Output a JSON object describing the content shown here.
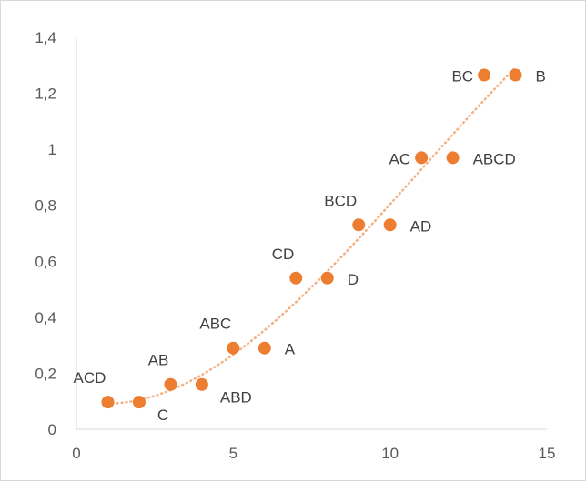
{
  "chart_data": {
    "type": "scatter",
    "title": "",
    "xlabel": "",
    "ylabel": "",
    "xlim": [
      0,
      15
    ],
    "ylim": [
      0,
      1.4
    ],
    "x_ticks": [
      "0",
      "5",
      "10",
      "15"
    ],
    "y_ticks": [
      "0",
      "0,2",
      "0,4",
      "0,6",
      "0,8",
      "1",
      "1,2",
      "1,4"
    ],
    "grid": false,
    "legend": "none",
    "marker_color": "#ED7D31",
    "trendline": {
      "type": "polynomial",
      "style": "dotted",
      "color": "#F4B183"
    },
    "points": [
      {
        "label": "ACD",
        "x": 1,
        "y": 0.097,
        "label_pos": "above-left"
      },
      {
        "label": "C",
        "x": 2,
        "y": 0.097,
        "label_pos": "below-right"
      },
      {
        "label": "AB",
        "x": 3,
        "y": 0.16,
        "label_pos": "above-left"
      },
      {
        "label": "ABD",
        "x": 4,
        "y": 0.16,
        "label_pos": "below-right"
      },
      {
        "label": "ABC",
        "x": 5,
        "y": 0.29,
        "label_pos": "above-left"
      },
      {
        "label": "A",
        "x": 6,
        "y": 0.29,
        "label_pos": "right"
      },
      {
        "label": "CD",
        "x": 7,
        "y": 0.54,
        "label_pos": "above-left"
      },
      {
        "label": "D",
        "x": 8,
        "y": 0.54,
        "label_pos": "right"
      },
      {
        "label": "BCD",
        "x": 9,
        "y": 0.73,
        "label_pos": "above-left"
      },
      {
        "label": "AD",
        "x": 10,
        "y": 0.73,
        "label_pos": "right"
      },
      {
        "label": "AC",
        "x": 11,
        "y": 0.97,
        "label_pos": "left"
      },
      {
        "label": "ABCD",
        "x": 12,
        "y": 0.97,
        "label_pos": "right"
      },
      {
        "label": "BC",
        "x": 13,
        "y": 1.265,
        "label_pos": "left"
      },
      {
        "label": "B",
        "x": 14,
        "y": 1.265,
        "label_pos": "right"
      }
    ]
  }
}
